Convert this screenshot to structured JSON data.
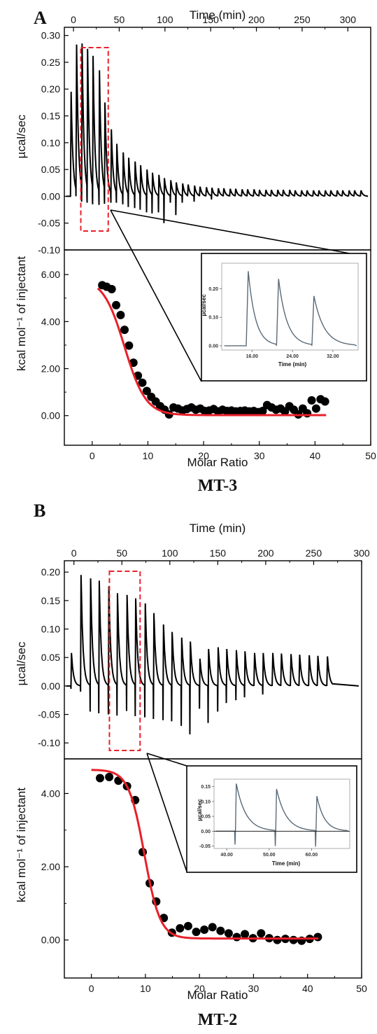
{
  "chart_data": [
    {
      "panel_label": "A",
      "caption": "MT-3",
      "type": "line",
      "raw": {
        "xlabel": "Time (min)",
        "ylabel": "µcal/sec",
        "xlim": [
          -10,
          325
        ],
        "ylim": [
          -0.1,
          0.31
        ],
        "xticks": [
          "0",
          "50",
          "100",
          "150",
          "200",
          "250",
          "300"
        ],
        "yticks": [
          "0.30",
          "0.25",
          "0.20",
          "0.15",
          "0.10",
          "0.05",
          "0.00",
          "-0.05",
          "-0.10"
        ],
        "injections": {
          "times": [
            -3,
            3,
            9,
            15,
            21,
            28,
            34,
            41,
            47,
            54,
            60,
            67,
            73,
            80,
            86,
            93,
            99,
            106,
            112,
            119,
            125,
            132,
            138,
            145,
            151,
            158,
            164,
            171,
            177,
            184,
            190,
            197,
            203,
            210,
            216,
            223,
            229,
            236,
            242,
            249,
            255,
            262,
            268,
            275,
            281,
            288,
            294,
            301,
            307,
            314
          ],
          "peaks": [
            0.195,
            0.283,
            0.285,
            0.275,
            0.262,
            0.235,
            0.175,
            0.125,
            0.098,
            0.082,
            0.072,
            0.065,
            0.058,
            0.05,
            0.044,
            0.04,
            0.034,
            0.03,
            0.026,
            0.024,
            0.022,
            0.02,
            0.018,
            0.017,
            0.016,
            0.015,
            0.015,
            0.014,
            0.014,
            0.013,
            0.013,
            0.013,
            0.012,
            0.012,
            0.012,
            0.012,
            0.012,
            0.012,
            0.011,
            0.011,
            0.011,
            0.011,
            0.011,
            0.011,
            0.011,
            0.011,
            0.011,
            0.011,
            0.011,
            0.011
          ],
          "dips": [
            0,
            0,
            -0.01,
            -0.012,
            -0.015,
            -0.016,
            -0.014,
            -0.012,
            -0.012,
            -0.015,
            -0.02,
            -0.022,
            -0.025,
            -0.03,
            -0.032,
            -0.03,
            -0.05,
            -0.012,
            -0.035,
            -0.012,
            0,
            -0.01,
            0,
            0,
            -0.006,
            0,
            0,
            0,
            0,
            0,
            0,
            0,
            0,
            0,
            0,
            0,
            0,
            0,
            0,
            0,
            0,
            0,
            0,
            0,
            0,
            0,
            0,
            0,
            0,
            0
          ]
        },
        "highlight_x": [
          8,
          38
        ]
      },
      "binding": {
        "xlabel": "Molar Ratio",
        "ylabel": "kcal mol⁻¹ of injectant",
        "xlim": [
          -5,
          50
        ],
        "ylim": [
          -1.2,
          6.9
        ],
        "xticks": [
          "0",
          "10",
          "20",
          "30",
          "40",
          "50"
        ],
        "yticks": [
          "6.00",
          "4.00",
          "2.00",
          "0.00"
        ],
        "points_x": [
          1.8,
          2.6,
          3.5,
          4.3,
          5.1,
          5.8,
          6.6,
          7.4,
          8.2,
          9.0,
          9.8,
          10.6,
          11.4,
          12.2,
          13.0,
          13.8,
          14.6,
          15.4,
          16.2,
          17.0,
          17.8,
          18.6,
          19.4,
          20.2,
          21.0,
          21.8,
          22.6,
          23.4,
          24.2,
          25.0,
          25.8,
          26.6,
          27.4,
          28.2,
          29.0,
          29.8,
          30.6,
          31.4,
          32.2,
          33.0,
          33.8,
          34.6,
          35.4,
          36.2,
          37.0,
          37.8,
          38.6,
          39.4,
          40.2,
          41.0,
          41.8
        ],
        "points_y": [
          5.55,
          5.48,
          5.38,
          4.7,
          4.28,
          3.65,
          2.98,
          2.25,
          1.7,
          1.4,
          1.05,
          0.8,
          0.6,
          0.4,
          0.25,
          0.05,
          0.35,
          0.3,
          0.22,
          0.28,
          0.35,
          0.25,
          0.3,
          0.2,
          0.22,
          0.28,
          0.18,
          0.25,
          0.2,
          0.22,
          0.18,
          0.2,
          0.22,
          0.18,
          0.2,
          0.15,
          0.2,
          0.45,
          0.35,
          0.25,
          0.3,
          0.18,
          0.4,
          0.25,
          0.05,
          0.3,
          0.1,
          0.65,
          0.3,
          0.7,
          0.6
        ],
        "fit_name": "fit",
        "fit": {
          "top": 5.85,
          "bottom": 0.02,
          "x0": 5.8,
          "w": 1.9,
          "xstart": 1,
          "xend": 42
        }
      },
      "inset": {
        "xlabel": "Time (min)",
        "ylabel": "µcal/sec",
        "xlim": [
          10,
          37
        ],
        "ylim": [
          -0.015,
          0.29
        ],
        "xticks": [
          "16.00",
          "24.00",
          "32.00"
        ],
        "yticks": [
          "0.20",
          "0.10",
          "0.00"
        ],
        "peak_times": [
          15,
          21,
          28
        ],
        "peak_heights": [
          0.262,
          0.235,
          0.175
        ],
        "dips": [
          0,
          0,
          0
        ]
      }
    },
    {
      "panel_label": "B",
      "caption": "MT-2",
      "type": "line",
      "raw": {
        "xlabel": "Time (min)",
        "ylabel": "µcal/sec",
        "xlim": [
          -10,
          300
        ],
        "ylim": [
          -0.128,
          0.215
        ],
        "xticks": [
          "0",
          "50",
          "100",
          "150",
          "200",
          "250",
          "300"
        ],
        "yticks": [
          "0.20",
          "0.15",
          "0.10",
          "0.05",
          "0.00",
          "-0.05",
          "-0.10"
        ],
        "injections": {
          "times": [
            -3,
            7,
            17,
            26,
            36,
            45,
            55,
            64,
            74,
            83,
            93,
            102,
            112,
            121,
            131,
            140,
            150,
            159,
            169,
            178,
            188,
            197,
            207,
            216,
            226,
            235,
            245,
            254,
            264
          ],
          "peaks": [
            0.058,
            0.195,
            0.189,
            0.185,
            0.175,
            0.163,
            0.16,
            0.154,
            0.145,
            0.128,
            0.108,
            0.095,
            0.085,
            0.078,
            0.048,
            0.065,
            0.068,
            0.065,
            0.063,
            0.061,
            0.058,
            0.058,
            0.058,
            0.057,
            0.056,
            0.055,
            0.054,
            0.053,
            0.052
          ],
          "dips": [
            -0.005,
            -0.01,
            -0.045,
            -0.048,
            -0.05,
            -0.052,
            -0.044,
            -0.053,
            -0.055,
            -0.058,
            -0.06,
            -0.062,
            -0.07,
            -0.085,
            -0.04,
            -0.065,
            -0.045,
            -0.03,
            -0.025,
            -0.02,
            0,
            -0.015,
            0,
            0,
            0,
            0,
            0,
            0,
            0
          ]
        },
        "highlight_x": [
          37,
          69
        ]
      },
      "binding": {
        "xlabel": "Molar Ratio",
        "ylabel": "kcal mol⁻¹ of injectant",
        "xlim": [
          -5,
          50
        ],
        "ylim": [
          -1.0,
          4.85
        ],
        "xticks": [
          "0",
          "10",
          "20",
          "30",
          "40",
          "50"
        ],
        "yticks": [
          "4.00",
          "2.00",
          "0.00"
        ],
        "points_x": [
          1.6,
          3.3,
          5.0,
          6.6,
          8.1,
          9.5,
          10.8,
          12.0,
          13.4,
          14.9,
          16.4,
          17.9,
          19.4,
          20.9,
          22.4,
          23.9,
          25.4,
          26.9,
          28.4,
          29.9,
          31.4,
          32.9,
          34.4,
          35.9,
          37.4,
          38.9,
          40.4,
          41.9
        ],
        "points_y": [
          4.42,
          4.45,
          4.35,
          4.2,
          3.82,
          2.4,
          1.55,
          1.05,
          0.6,
          0.2,
          0.32,
          0.38,
          0.22,
          0.28,
          0.35,
          0.25,
          0.18,
          0.08,
          0.16,
          0.05,
          0.18,
          0.05,
          0.0,
          0.03,
          0.0,
          -0.02,
          0.03,
          0.08
        ],
        "fit_name": "fit",
        "fit": {
          "top": 4.65,
          "bottom": 0.04,
          "x0": 9.8,
          "w": 1.45,
          "xstart": 0,
          "xend": 42
        }
      },
      "inset": {
        "xlabel": "Time (min)",
        "ylabel": "µcal/sec",
        "xlim": [
          37,
          69
        ],
        "ylim": [
          -0.058,
          0.175
        ],
        "xticks": [
          "40.00",
          "50.00",
          "60.00"
        ],
        "yticks": [
          "0.15",
          "0.10",
          "0.05",
          "0.00",
          "-0.05"
        ],
        "peak_times": [
          42,
          51.5,
          61
        ],
        "peak_heights": [
          0.16,
          0.142,
          0.118
        ],
        "dips": [
          -0.045,
          -0.05,
          -0.052
        ]
      }
    }
  ],
  "colors": {
    "trace": "#000000",
    "fit": "#e8202a",
    "highlight": "#e8202a",
    "points": "#000000",
    "inset_trace": "#5a6a78"
  }
}
